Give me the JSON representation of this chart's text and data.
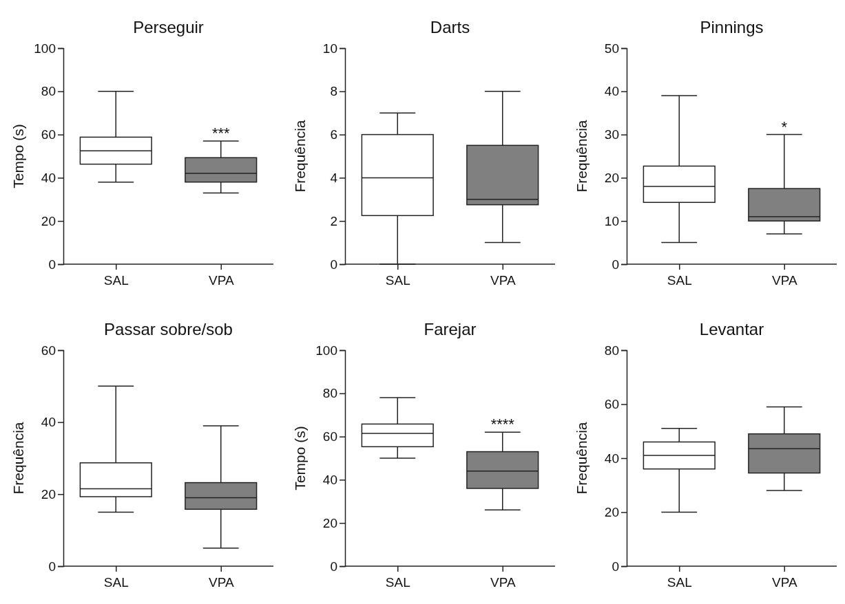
{
  "chart_data": [
    {
      "type": "box",
      "title": "Perseguir",
      "ylabel": "Tempo (s)",
      "categories": [
        "SAL",
        "VPA"
      ],
      "colors": [
        "#ffffff",
        "#808080"
      ],
      "ylim": [
        0,
        100
      ],
      "yticks": [
        0,
        20,
        40,
        60,
        80,
        100
      ],
      "boxes": [
        {
          "low": 38,
          "q1": 46.3,
          "median": 52.5,
          "q3": 58.8,
          "high": 80
        },
        {
          "low": 33,
          "q1": 38,
          "median": 42,
          "q3": 49.3,
          "high": 57
        }
      ],
      "annotations": [
        {
          "text": "***",
          "x": "VPA",
          "y": 57
        }
      ]
    },
    {
      "type": "box",
      "title": "Darts",
      "ylabel": "Frequência",
      "categories": [
        "SAL",
        "VPA"
      ],
      "colors": [
        "#ffffff",
        "#808080"
      ],
      "ylim": [
        0,
        10
      ],
      "yticks": [
        0,
        2,
        4,
        6,
        8,
        10
      ],
      "boxes": [
        {
          "low": 0,
          "q1": 2.25,
          "median": 4,
          "q3": 6,
          "high": 7
        },
        {
          "low": 1,
          "q1": 2.75,
          "median": 3,
          "q3": 5.5,
          "high": 8
        }
      ]
    },
    {
      "type": "box",
      "title": "Pinnings",
      "ylabel": "Frequência",
      "categories": [
        "SAL",
        "VPA"
      ],
      "colors": [
        "#ffffff",
        "#808080"
      ],
      "ylim": [
        0,
        50
      ],
      "yticks": [
        0,
        10,
        20,
        30,
        40,
        50
      ],
      "boxes": [
        {
          "low": 5,
          "q1": 14.3,
          "median": 18,
          "q3": 22.7,
          "high": 39
        },
        {
          "low": 7,
          "q1": 10,
          "median": 11,
          "q3": 17.5,
          "high": 30
        }
      ],
      "annotations": [
        {
          "text": "*",
          "x": "VPA",
          "y": 30
        }
      ]
    },
    {
      "type": "box",
      "title": "Passar sobre/sob",
      "ylabel": "Frequência",
      "categories": [
        "SAL",
        "VPA"
      ],
      "colors": [
        "#ffffff",
        "#808080"
      ],
      "ylim": [
        0,
        60
      ],
      "yticks": [
        0,
        20,
        40,
        60
      ],
      "boxes": [
        {
          "low": 15,
          "q1": 19.3,
          "median": 21.5,
          "q3": 28.7,
          "high": 50
        },
        {
          "low": 5,
          "q1": 15.8,
          "median": 19,
          "q3": 23.2,
          "high": 39
        }
      ]
    },
    {
      "type": "box",
      "title": "Farejar",
      "ylabel": "Tempo (s)",
      "categories": [
        "SAL",
        "VPA"
      ],
      "colors": [
        "#ffffff",
        "#808080"
      ],
      "ylim": [
        0,
        100
      ],
      "yticks": [
        0,
        20,
        40,
        60,
        80,
        100
      ],
      "boxes": [
        {
          "low": 50,
          "q1": 55.3,
          "median": 61.5,
          "q3": 65.8,
          "high": 78
        },
        {
          "low": 26,
          "q1": 36,
          "median": 44,
          "q3": 53,
          "high": 62
        }
      ],
      "annotations": [
        {
          "text": "****",
          "x": "VPA",
          "y": 62
        }
      ]
    },
    {
      "type": "box",
      "title": "Levantar",
      "ylabel": "Frequência",
      "categories": [
        "SAL",
        "VPA"
      ],
      "colors": [
        "#ffffff",
        "#808080"
      ],
      "ylim": [
        0,
        80
      ],
      "yticks": [
        0,
        20,
        40,
        60,
        80
      ],
      "boxes": [
        {
          "low": 20,
          "q1": 36,
          "median": 41,
          "q3": 46,
          "high": 51
        },
        {
          "low": 28,
          "q1": 34.5,
          "median": 43.5,
          "q3": 49,
          "high": 59
        }
      ]
    }
  ]
}
